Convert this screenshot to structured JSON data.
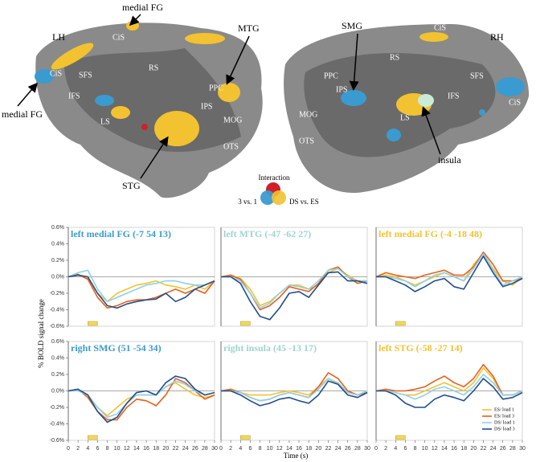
{
  "left_hemisphere": {
    "name": "LH",
    "labels": [
      "CiS",
      "CiS",
      "RS",
      "SFS",
      "IFS",
      "PPC",
      "IPS",
      "LS",
      "MOG",
      "OTS"
    ],
    "callouts": [
      "medial FG",
      "medial FG",
      "MTG",
      "STG"
    ]
  },
  "right_hemisphere": {
    "name": "RH",
    "labels": [
      "CiS",
      "CiS",
      "SFS",
      "RS",
      "PPC",
      "IPS",
      "IFS",
      "MOG",
      "LS",
      "OTS"
    ],
    "callouts": [
      "SMG",
      "insula"
    ]
  },
  "key": {
    "title": "Interaction",
    "left": "3 vs. 1",
    "right": "DS vs. ES"
  },
  "y_label": "% BOLD signal change",
  "x_label": "Time (s)",
  "chart_data": [
    {
      "type": "line",
      "title": "left medial FG (-7 54 13)",
      "title_color": "#3a9bd0",
      "xlim": [
        0,
        30
      ],
      "ylim": [
        -0.6,
        0.6
      ],
      "stimulus": [
        4,
        6
      ],
      "yticks": [
        {
          "value": 0.6,
          "label": "0.6%"
        },
        {
          "value": 0.4,
          "label": "0.4%"
        },
        {
          "value": 0.2,
          "label": "0.2%"
        },
        {
          "value": 0,
          "label": "0.0%"
        },
        {
          "value": -0.2,
          "label": "-0.2%"
        },
        {
          "value": -0.4,
          "label": "-0.4%"
        },
        {
          "value": -0.6,
          "label": "-0.6%"
        }
      ],
      "x": [
        0,
        2,
        4,
        6,
        8,
        10,
        12,
        14,
        16,
        18,
        20,
        22,
        24,
        26,
        28,
        30
      ],
      "series": [
        {
          "color": "#f2c230",
          "values": [
            0,
            0.02,
            -0.02,
            -0.2,
            -0.3,
            -0.2,
            -0.15,
            -0.1,
            -0.08,
            -0.05,
            -0.1,
            -0.12,
            -0.15,
            -0.1,
            -0.15,
            -0.05
          ]
        },
        {
          "color": "#e8601c",
          "values": [
            0,
            0.03,
            -0.03,
            -0.25,
            -0.38,
            -0.35,
            -0.3,
            -0.28,
            -0.28,
            -0.25,
            -0.2,
            -0.15,
            -0.2,
            -0.15,
            -0.2,
            -0.05
          ]
        },
        {
          "color": "#8fd0e8",
          "values": [
            0,
            0.05,
            0.08,
            -0.15,
            -0.3,
            -0.25,
            -0.2,
            -0.15,
            -0.1,
            -0.08,
            -0.05,
            -0.05,
            -0.08,
            -0.1,
            -0.1,
            -0.05
          ]
        },
        {
          "color": "#1f4e8c",
          "values": [
            0,
            0.02,
            0,
            -0.2,
            -0.35,
            -0.38,
            -0.33,
            -0.3,
            -0.28,
            -0.27,
            -0.2,
            -0.3,
            -0.25,
            -0.15,
            -0.1,
            -0.05
          ]
        }
      ]
    },
    {
      "type": "line",
      "title": "left MTG (-47 -62 27)",
      "title_color": "#9fd4cc",
      "xlim": [
        0,
        30
      ],
      "ylim": [
        -0.6,
        0.6
      ],
      "stimulus": [
        4,
        6
      ],
      "x": [
        0,
        2,
        4,
        6,
        8,
        10,
        12,
        14,
        16,
        18,
        20,
        22,
        24,
        26,
        28,
        30
      ],
      "series": [
        {
          "color": "#f2c230",
          "values": [
            0,
            0.02,
            -0.02,
            -0.15,
            -0.35,
            -0.3,
            -0.2,
            -0.1,
            -0.1,
            -0.15,
            -0.1,
            0.05,
            0.1,
            0.02,
            -0.05,
            -0.05
          ]
        },
        {
          "color": "#e8601c",
          "values": [
            0,
            0.02,
            -0.03,
            -0.2,
            -0.4,
            -0.35,
            -0.25,
            -0.12,
            -0.15,
            -0.18,
            -0.08,
            0.08,
            0.12,
            0,
            -0.08,
            -0.05
          ]
        },
        {
          "color": "#8fd0e8",
          "values": [
            0,
            0,
            -0.05,
            -0.2,
            -0.38,
            -0.32,
            -0.2,
            -0.1,
            -0.12,
            -0.15,
            -0.05,
            0.08,
            0.1,
            0,
            -0.05,
            -0.05
          ]
        },
        {
          "color": "#1f4e8c",
          "values": [
            0,
            0,
            -0.08,
            -0.3,
            -0.48,
            -0.52,
            -0.38,
            -0.2,
            -0.18,
            -0.25,
            -0.1,
            0.05,
            0.06,
            -0.05,
            -0.05,
            -0.08
          ]
        }
      ]
    },
    {
      "type": "line",
      "title": "left medial FG (-4 -18 48)",
      "title_color": "#f2c230",
      "xlim": [
        0,
        30
      ],
      "ylim": [
        -0.6,
        0.6
      ],
      "stimulus": [
        4,
        6
      ],
      "x": [
        0,
        2,
        4,
        6,
        8,
        10,
        12,
        14,
        16,
        18,
        20,
        22,
        24,
        26,
        28,
        30
      ],
      "series": [
        {
          "color": "#f2c230",
          "values": [
            0,
            0.02,
            0,
            -0.05,
            -0.1,
            -0.05,
            0,
            0.05,
            0,
            -0.05,
            0.15,
            0.28,
            0.1,
            -0.05,
            -0.1,
            0
          ]
        },
        {
          "color": "#e8601c",
          "values": [
            0,
            0.05,
            0.02,
            0,
            -0.02,
            0.02,
            0.05,
            0.08,
            0.02,
            0.02,
            0.12,
            0.3,
            0.15,
            -0.05,
            -0.05,
            -0.02
          ]
        },
        {
          "color": "#8fd0e8",
          "values": [
            0,
            0,
            -0.02,
            -0.05,
            -0.12,
            -0.05,
            0.02,
            0.05,
            0,
            -0.05,
            0.1,
            0.28,
            0.08,
            -0.1,
            -0.05,
            0
          ]
        },
        {
          "color": "#1f4e8c",
          "values": [
            0,
            0,
            -0.05,
            -0.1,
            -0.18,
            -0.12,
            -0.05,
            -0.02,
            -0.12,
            -0.15,
            0.05,
            0.25,
            0.05,
            -0.12,
            -0.08,
            -0.02
          ]
        }
      ]
    },
    {
      "type": "line",
      "title": "right SMG (51 -54 34)",
      "title_color": "#3a9bd0",
      "xlim": [
        0,
        30
      ],
      "ylim": [
        -0.6,
        0.6
      ],
      "stimulus": [
        4,
        6
      ],
      "yticks": [
        {
          "value": 0.6,
          "label": "0.6%"
        },
        {
          "value": 0.4,
          "label": "0.4%"
        },
        {
          "value": 0.2,
          "label": "0.2%"
        },
        {
          "value": 0,
          "label": "0.0%"
        },
        {
          "value": -0.2,
          "label": "-0.2%"
        },
        {
          "value": -0.4,
          "label": "-0.4%"
        },
        {
          "value": -0.6,
          "label": "-0.6%"
        }
      ],
      "xticks": [
        0,
        2,
        4,
        6,
        8,
        10,
        12,
        14,
        16,
        18,
        20,
        22,
        24,
        26,
        28,
        30
      ],
      "x": [
        0,
        2,
        4,
        6,
        8,
        10,
        12,
        14,
        16,
        18,
        20,
        22,
        24,
        26,
        28,
        30
      ],
      "series": [
        {
          "color": "#f2c230",
          "values": [
            0,
            0.02,
            -0.05,
            -0.2,
            -0.3,
            -0.2,
            -0.1,
            -0.05,
            -0.05,
            -0.05,
            0.05,
            0.1,
            0.02,
            -0.05,
            -0.08,
            -0.05
          ]
        },
        {
          "color": "#e8601c",
          "values": [
            0,
            0.02,
            -0.08,
            -0.25,
            -0.35,
            -0.35,
            -0.2,
            -0.1,
            -0.12,
            -0.18,
            -0.05,
            0.15,
            0.1,
            0,
            -0.1,
            -0.05
          ]
        },
        {
          "color": "#8fd0e8",
          "values": [
            0,
            0,
            -0.05,
            -0.2,
            -0.32,
            -0.28,
            -0.15,
            -0.05,
            -0.05,
            -0.05,
            0.05,
            0.12,
            0.08,
            0,
            -0.05,
            -0.02
          ]
        },
        {
          "color": "#1f4e8c",
          "values": [
            0,
            0.02,
            -0.05,
            -0.25,
            -0.38,
            -0.32,
            -0.15,
            -0.02,
            0,
            -0.05,
            0.1,
            0.18,
            0.15,
            0.02,
            -0.05,
            -0.02
          ]
        }
      ]
    },
    {
      "type": "line",
      "title": "right insula (45 -13 17)",
      "title_color": "#9fd4cc",
      "xlim": [
        0,
        30
      ],
      "ylim": [
        -0.6,
        0.6
      ],
      "stimulus": [
        4,
        6
      ],
      "xticks": [
        0,
        2,
        4,
        6,
        8,
        10,
        12,
        14,
        16,
        18,
        20,
        22,
        24,
        26,
        28,
        30
      ],
      "x": [
        0,
        2,
        4,
        6,
        8,
        10,
        12,
        14,
        16,
        18,
        20,
        22,
        24,
        26,
        28,
        30
      ],
      "series": [
        {
          "color": "#f2c230",
          "values": [
            0,
            0,
            -0.02,
            -0.05,
            -0.05,
            -0.05,
            -0.02,
            0,
            -0.02,
            -0.05,
            0.05,
            0.15,
            0.08,
            -0.02,
            -0.05,
            0
          ]
        },
        {
          "color": "#e8601c",
          "values": [
            0,
            0.02,
            -0.02,
            -0.08,
            -0.12,
            -0.1,
            -0.05,
            -0.02,
            -0.05,
            -0.08,
            0.05,
            0.22,
            0.15,
            0,
            -0.05,
            -0.02
          ]
        },
        {
          "color": "#8fd0e8",
          "values": [
            0,
            0,
            -0.02,
            -0.08,
            -0.12,
            -0.1,
            -0.05,
            -0.02,
            -0.05,
            -0.08,
            0.02,
            0.15,
            0.1,
            -0.02,
            -0.05,
            0
          ]
        },
        {
          "color": "#1f4e8c",
          "values": [
            0,
            0,
            -0.05,
            -0.12,
            -0.18,
            -0.15,
            -0.1,
            -0.08,
            -0.12,
            -0.15,
            -0.05,
            0.12,
            0.08,
            -0.05,
            -0.08,
            -0.02
          ]
        }
      ]
    },
    {
      "type": "line",
      "title": "left STG (-58 -27 14)",
      "title_color": "#f2c230",
      "xlim": [
        0,
        30
      ],
      "ylim": [
        -0.6,
        0.6
      ],
      "stimulus": [
        4,
        6
      ],
      "legend": "lower right",
      "xticks": [
        0,
        2,
        4,
        6,
        8,
        10,
        12,
        14,
        16,
        18,
        20,
        22,
        24,
        26,
        28,
        30
      ],
      "x": [
        0,
        2,
        4,
        6,
        8,
        10,
        12,
        14,
        16,
        18,
        20,
        22,
        24,
        26,
        28,
        30
      ],
      "series": [
        {
          "name": "ES/ load 1",
          "color": "#f2c230",
          "values": [
            0,
            0,
            -0.02,
            -0.05,
            -0.05,
            0,
            0.05,
            0.1,
            0.05,
            0,
            0.1,
            0.28,
            0.15,
            -0.05,
            -0.05,
            0
          ]
        },
        {
          "name": "ES/ load 3",
          "color": "#e8601c",
          "values": [
            0,
            0.02,
            0,
            0,
            0.02,
            0.05,
            0.12,
            0.18,
            0.1,
            0.05,
            0.15,
            0.32,
            0.18,
            -0.05,
            -0.05,
            0
          ]
        },
        {
          "name": "DS/ load 1",
          "color": "#8fd0e8",
          "values": [
            0,
            0,
            -0.02,
            -0.05,
            -0.1,
            -0.05,
            0.02,
            0.05,
            0,
            -0.05,
            0.05,
            0.2,
            0.1,
            -0.05,
            -0.05,
            0
          ]
        },
        {
          "name": "DS/ load 3",
          "color": "#1f4e8c",
          "values": [
            0,
            0,
            -0.05,
            -0.15,
            -0.2,
            -0.2,
            -0.1,
            -0.05,
            -0.08,
            -0.12,
            0,
            0.15,
            0.05,
            -0.1,
            -0.08,
            -0.02
          ]
        }
      ]
    }
  ]
}
